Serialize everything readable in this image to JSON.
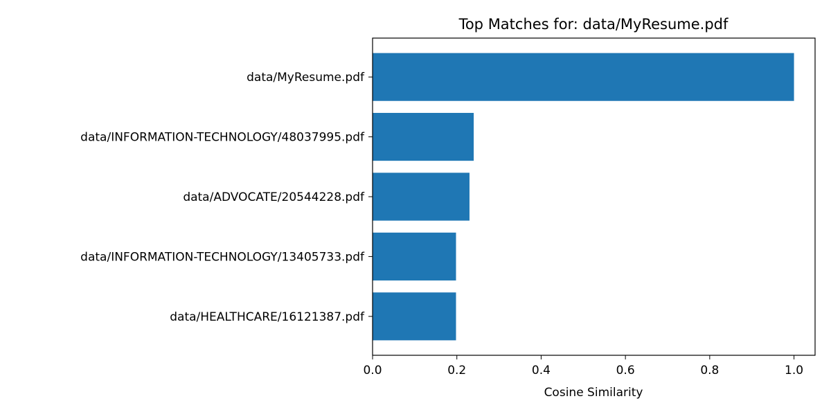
{
  "chart_data": {
    "type": "bar",
    "orientation": "horizontal",
    "title": "Top Matches for: data/MyResume.pdf",
    "xlabel": "Cosine Similarity",
    "ylabel": "",
    "xlim": [
      0,
      1.05
    ],
    "xticks": [
      0.0,
      0.2,
      0.4,
      0.6,
      0.8,
      1.0
    ],
    "xtick_labels": [
      "0.0",
      "0.2",
      "0.4",
      "0.6",
      "0.8",
      "1.0"
    ],
    "categories": [
      "data/MyResume.pdf",
      "data/INFORMATION-TECHNOLOGY/48037995.pdf",
      "data/ADVOCATE/20544228.pdf",
      "data/INFORMATION-TECHNOLOGY/13405733.pdf",
      "data/HEALTHCARE/16121387.pdf"
    ],
    "values": [
      1.0,
      0.24,
      0.23,
      0.198,
      0.198
    ],
    "bar_color": "#1f77b4",
    "grid": false,
    "legend": "none"
  }
}
